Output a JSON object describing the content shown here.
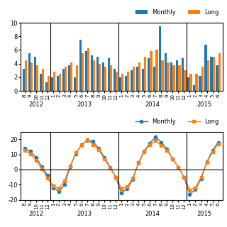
{
  "chart_data": [
    {
      "type": "bar",
      "categories": [
        "8",
        "9",
        "10",
        "11",
        "12",
        "1",
        "2",
        "3",
        "4",
        "5",
        "6",
        "7",
        "8",
        "9",
        "10",
        "11",
        "12",
        "1",
        "2",
        "3",
        "4",
        "5",
        "6",
        "7",
        "8",
        "9",
        "10",
        "11",
        "12",
        "1",
        "2",
        "3",
        "4",
        "5",
        "6"
      ],
      "series": [
        {
          "name": "Monthly",
          "values": [
            3.2,
            5.5,
            5.0,
            2.5,
            1.2,
            2.0,
            2.2,
            3.2,
            3.8,
            2.0,
            7.5,
            5.8,
            5.2,
            5.0,
            4.2,
            4.8,
            3.2,
            2.0,
            2.2,
            3.0,
            3.5,
            3.2,
            4.8,
            3.5,
            9.5,
            5.5,
            4.2,
            4.5,
            4.8,
            2.0,
            0.8,
            2.2,
            6.8,
            5.0,
            3.8
          ]
        },
        {
          "name": "Long",
          "values": [
            4.5,
            4.2,
            3.8,
            3.2,
            2.2,
            2.8,
            2.5,
            3.5,
            4.2,
            3.8,
            5.5,
            6.2,
            4.5,
            4.0,
            3.5,
            3.8,
            2.8,
            2.5,
            2.8,
            3.5,
            4.2,
            5.0,
            5.8,
            6.0,
            4.5,
            4.2,
            3.8,
            3.8,
            3.0,
            2.5,
            2.5,
            3.5,
            4.5,
            5.0,
            5.5
          ]
        }
      ],
      "ylim": [
        0,
        10
      ],
      "yticks": [
        0,
        2,
        4,
        6,
        8,
        10
      ],
      "vlines": [
        4.5,
        16.5,
        28.5
      ],
      "annotations": [
        {
          "text": "2012",
          "x": 2.0
        },
        {
          "text": "2013",
          "x": 10.5
        },
        {
          "text": "2014",
          "x": 22.5
        },
        {
          "text": "2015",
          "x": 31.5
        }
      ],
      "legend": "upper right"
    },
    {
      "type": "line",
      "categories": [
        "8",
        "9",
        "10",
        "11",
        "12",
        "1",
        "2",
        "3",
        "4",
        "5",
        "6",
        "7",
        "8",
        "9",
        "10",
        "11",
        "12",
        "1",
        "2",
        "3",
        "4",
        "5",
        "6",
        "7",
        "8",
        "9",
        "10",
        "11",
        "12",
        "1",
        "2",
        "3",
        "4",
        "5",
        "6"
      ],
      "series": [
        {
          "name": "Monthly",
          "marker": "circle",
          "values": [
            14.0,
            12.0,
            8.0,
            2.0,
            -4.0,
            -12.0,
            -14.5,
            -10.0,
            2.0,
            10.5,
            16.5,
            19.0,
            18.5,
            14.0,
            8.0,
            1.5,
            -5.0,
            -15.5,
            -12.5,
            -6.5,
            4.5,
            12.0,
            17.5,
            21.5,
            18.0,
            13.5,
            7.0,
            1.5,
            -5.0,
            -16.5,
            -13.0,
            -6.0,
            5.0,
            12.5,
            18.0
          ]
        },
        {
          "name": "Long",
          "marker": "square",
          "values": [
            12.5,
            10.5,
            6.0,
            0.5,
            -5.5,
            -11.0,
            -12.5,
            -7.5,
            2.5,
            11.0,
            16.0,
            19.5,
            16.5,
            13.0,
            7.0,
            1.0,
            -5.0,
            -12.5,
            -11.5,
            -5.5,
            4.0,
            11.5,
            16.5,
            19.0,
            16.0,
            12.5,
            7.0,
            1.5,
            -5.0,
            -13.5,
            -12.0,
            -5.0,
            4.5,
            11.5,
            17.0
          ]
        }
      ],
      "ylim": [
        -20,
        25
      ],
      "yticks": [
        -20,
        -10,
        0,
        10,
        20
      ],
      "vlines": [
        4.5,
        16.5,
        28.5
      ],
      "hlines": [
        0
      ],
      "annotations": [
        {
          "text": "2012",
          "x": 2.0
        },
        {
          "text": "2013",
          "x": 10.5
        },
        {
          "text": "2014",
          "x": 22.5
        },
        {
          "text": "2015",
          "x": 31.5
        }
      ],
      "legend": "upper right"
    }
  ]
}
